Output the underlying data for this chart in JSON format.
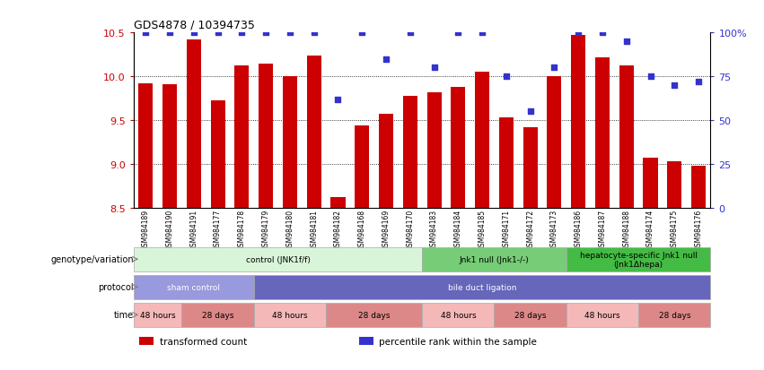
{
  "title": "GDS4878 / 10394735",
  "samples": [
    "GSM984189",
    "GSM984190",
    "GSM984191",
    "GSM984177",
    "GSM984178",
    "GSM984179",
    "GSM984180",
    "GSM984181",
    "GSM984182",
    "GSM984168",
    "GSM984169",
    "GSM984170",
    "GSM984183",
    "GSM984184",
    "GSM984185",
    "GSM984171",
    "GSM984172",
    "GSM984173",
    "GSM984186",
    "GSM984187",
    "GSM984188",
    "GSM984174",
    "GSM984175",
    "GSM984176"
  ],
  "bar_values": [
    9.92,
    9.91,
    10.42,
    9.72,
    10.12,
    10.14,
    10.0,
    10.24,
    8.62,
    9.44,
    9.57,
    9.78,
    9.82,
    9.88,
    10.05,
    9.53,
    9.42,
    10.0,
    10.47,
    10.22,
    10.12,
    9.07,
    9.03,
    8.98
  ],
  "dot_values": [
    100,
    100,
    100,
    100,
    100,
    100,
    100,
    100,
    62,
    100,
    85,
    100,
    80,
    100,
    100,
    75,
    55,
    80,
    100,
    100,
    95,
    75,
    70,
    72
  ],
  "bar_color": "#cc0000",
  "dot_color": "#3333cc",
  "ylim_left": [
    8.5,
    10.5
  ],
  "ylim_right": [
    0,
    100
  ],
  "yticks_left": [
    8.5,
    9.0,
    9.5,
    10.0,
    10.5
  ],
  "yticks_right": [
    0,
    25,
    50,
    75,
    100
  ],
  "ytick_labels_right": [
    "0",
    "25",
    "50",
    "75",
    "100%"
  ],
  "genotype_groups": [
    {
      "label": "control (JNK1f/f)",
      "start": 0,
      "end": 11,
      "color": "#d9f5d9",
      "border": "#aaaaaa"
    },
    {
      "label": "Jnk1 null (Jnk1-/-)",
      "start": 12,
      "end": 17,
      "color": "#77cc77",
      "border": "#aaaaaa"
    },
    {
      "label": "hepatocyte-specific Jnk1 null\n(Jnk1Δhepa)",
      "start": 18,
      "end": 23,
      "color": "#44bb44",
      "border": "#aaaaaa"
    }
  ],
  "protocol_groups": [
    {
      "label": "sham control",
      "start": 0,
      "end": 4,
      "color": "#9999dd",
      "border": "#aaaaaa"
    },
    {
      "label": "bile duct ligation",
      "start": 5,
      "end": 23,
      "color": "#6666bb",
      "border": "#aaaaaa"
    }
  ],
  "time_groups": [
    {
      "label": "48 hours",
      "start": 0,
      "end": 1,
      "color": "#f5b8b8",
      "border": "#aaaaaa"
    },
    {
      "label": "28 days",
      "start": 2,
      "end": 4,
      "color": "#dd8888",
      "border": "#aaaaaa"
    },
    {
      "label": "48 hours",
      "start": 5,
      "end": 7,
      "color": "#f5b8b8",
      "border": "#aaaaaa"
    },
    {
      "label": "28 days",
      "start": 8,
      "end": 11,
      "color": "#dd8888",
      "border": "#aaaaaa"
    },
    {
      "label": "48 hours",
      "start": 12,
      "end": 14,
      "color": "#f5b8b8",
      "border": "#aaaaaa"
    },
    {
      "label": "28 days",
      "start": 15,
      "end": 17,
      "color": "#dd8888",
      "border": "#aaaaaa"
    },
    {
      "label": "48 hours",
      "start": 18,
      "end": 20,
      "color": "#f5b8b8",
      "border": "#aaaaaa"
    },
    {
      "label": "28 days",
      "start": 21,
      "end": 23,
      "color": "#dd8888",
      "border": "#aaaaaa"
    }
  ],
  "row_labels": [
    "genotype/variation",
    "protocol",
    "time"
  ],
  "legend_items": [
    {
      "color": "#cc0000",
      "label": "transformed count"
    },
    {
      "color": "#3333cc",
      "label": "percentile rank within the sample"
    }
  ],
  "grid_yticks": [
    9.0,
    9.5,
    10.0
  ],
  "tick_color_left": "#cc0000",
  "tick_color_right": "#3333cc",
  "bar_width": 0.6,
  "label_fontsize": 7,
  "annot_fontsize": 6.5
}
